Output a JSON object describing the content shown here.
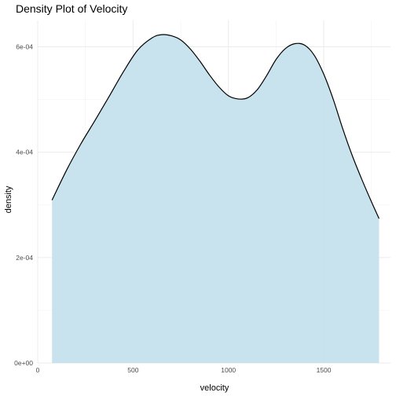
{
  "chart_data": {
    "type": "area",
    "title": "Density Plot of Velocity",
    "xlabel": "velocity",
    "ylabel": "density",
    "xlim": [
      0,
      1850
    ],
    "ylim": [
      0,
      0.00065
    ],
    "x_ticks": [
      {
        "value": 0,
        "label": "0"
      },
      {
        "value": 500,
        "label": "500"
      },
      {
        "value": 1000,
        "label": "1000"
      },
      {
        "value": 1500,
        "label": "1500"
      }
    ],
    "y_ticks": [
      {
        "value": 0,
        "label": "0e+00"
      },
      {
        "value": 0.0002,
        "label": "2e-04"
      },
      {
        "value": 0.0004,
        "label": "4e-04"
      },
      {
        "value": 0.0006,
        "label": "6e-04"
      }
    ],
    "grid": true,
    "fill_color": "#c5e2ec",
    "line_color": "#000000",
    "x": [
      75,
      150,
      225,
      300,
      375,
      450,
      525,
      600,
      650,
      700,
      750,
      800,
      850,
      900,
      950,
      1000,
      1050,
      1100,
      1150,
      1200,
      1250,
      1300,
      1350,
      1400,
      1450,
      1500,
      1550,
      1600,
      1650,
      1700,
      1750,
      1790
    ],
    "y": [
      0.000309,
      0.000365,
      0.000415,
      0.00046,
      0.000506,
      0.000553,
      0.000594,
      0.000617,
      0.000623,
      0.000621,
      0.000613,
      0.000596,
      0.000573,
      0.000547,
      0.000524,
      0.000507,
      0.000501,
      0.000503,
      0.000518,
      0.000545,
      0.000576,
      0.000597,
      0.000606,
      0.000603,
      0.000584,
      0.000548,
      0.0005,
      0.000444,
      0.000393,
      0.000348,
      0.000306,
      0.000274
    ]
  }
}
